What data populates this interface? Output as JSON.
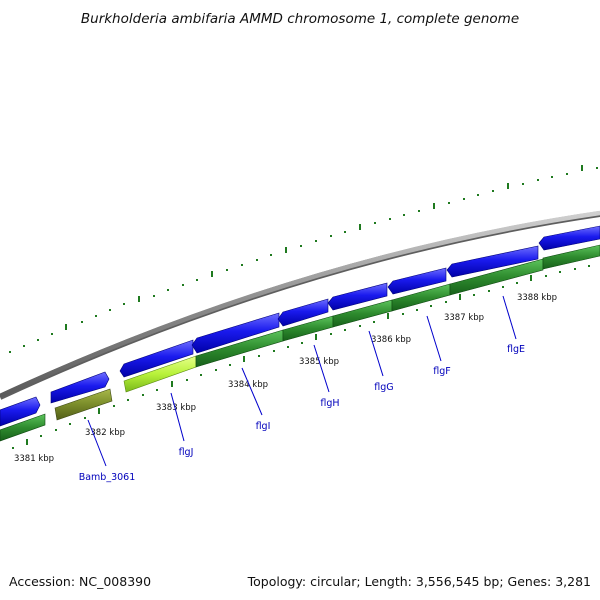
{
  "title": "Burkholderia ambifaria AMMD chromosome 1, complete genome",
  "footer": {
    "accession": "Accession: NC_008390",
    "summary": "Topology: circular; Length: 3,556,545 bp; Genes: 3,281"
  },
  "colors": {
    "backbone": "#8c8c8c",
    "tick": "#1f7a1f",
    "cds_forward": "#1a1aee",
    "gene_reverse": "#2e8b2e",
    "highlight_bright": "#b8f23a",
    "highlight_olive": "#7a8c2a",
    "label_line": "#0000cc",
    "label_text": "#0000bb"
  },
  "kbp_labels": [
    {
      "id": "kbp-3381",
      "text": "3381 kbp"
    },
    {
      "id": "kbp-3382",
      "text": "3382 kbp"
    },
    {
      "id": "kbp-3383",
      "text": "3383 kbp"
    },
    {
      "id": "kbp-3384",
      "text": "3384 kbp"
    },
    {
      "id": "kbp-3385",
      "text": "3385 kbp"
    },
    {
      "id": "kbp-3386",
      "text": "3386 kbp"
    },
    {
      "id": "kbp-3387",
      "text": "3387 kbp"
    },
    {
      "id": "kbp-3388",
      "text": "3388 kbp"
    }
  ],
  "genes": [
    {
      "id": "bamb-3061",
      "label": "Bamb_3061"
    },
    {
      "id": "flgj",
      "label": "flgJ"
    },
    {
      "id": "flgi",
      "label": "flgI"
    },
    {
      "id": "flgh",
      "label": "flgH"
    },
    {
      "id": "flgg",
      "label": "flgG"
    },
    {
      "id": "flgf",
      "label": "flgF"
    },
    {
      "id": "flge",
      "label": "flgE"
    }
  ]
}
